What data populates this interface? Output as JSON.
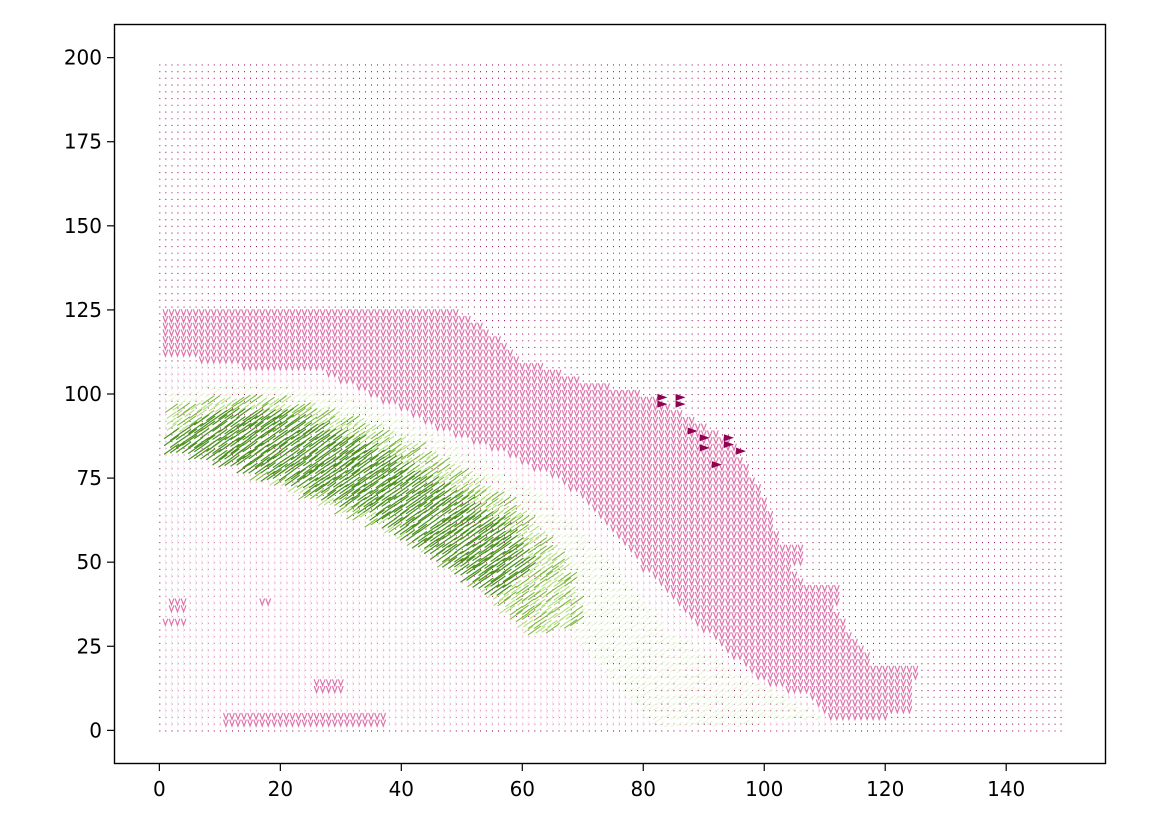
{
  "chart_data": {
    "type": "quiver",
    "title": "",
    "xlabel": "",
    "ylabel": "",
    "xlim": [
      -7.5,
      156.5
    ],
    "ylim": [
      -10,
      210
    ],
    "xticks": [
      0,
      20,
      40,
      60,
      80,
      100,
      120,
      140
    ],
    "yticks": [
      0,
      25,
      50,
      75,
      100,
      125,
      150,
      175,
      200
    ],
    "xtick_labels": [
      "0",
      "20",
      "40",
      "60",
      "80",
      "100",
      "120",
      "140"
    ],
    "ytick_labels": [
      "0",
      "25",
      "50",
      "75",
      "100",
      "125",
      "150",
      "175",
      "200"
    ],
    "grid": false,
    "colormap": "PiYG",
    "grid_extent": {
      "x": [
        0,
        149
      ],
      "y": [
        0,
        199
      ],
      "step": 1
    },
    "colors": {
      "dark_magenta": "#8e0152",
      "pink": "#de77ae",
      "light_pink": "#fde0ef",
      "pale_green": "#e6f5d0",
      "light_green": "#b8e186",
      "green": "#7fbc41",
      "dark_green": "#4d9221"
    },
    "regions": [
      {
        "name": "zero-field",
        "note": "tiny dark magenta dots across the whole grid"
      },
      {
        "name": "pink-arrows",
        "polygon": [
          [
            1,
            126
          ],
          [
            48,
            126
          ],
          [
            55,
            118
          ],
          [
            60,
            110
          ],
          [
            70,
            104
          ],
          [
            80,
            100
          ],
          [
            86,
            95
          ],
          [
            95,
            85
          ],
          [
            100,
            70
          ],
          [
            104,
            50
          ],
          [
            108,
            42
          ],
          [
            112,
            35
          ],
          [
            118,
            20
          ],
          [
            125,
            18
          ],
          [
            125,
            5
          ],
          [
            112,
            2
          ],
          [
            108,
            10
          ],
          [
            100,
            14
          ],
          [
            90,
            30
          ],
          [
            80,
            48
          ],
          [
            74,
            62
          ],
          [
            66,
            75
          ],
          [
            56,
            82
          ],
          [
            46,
            88
          ],
          [
            36,
            96
          ],
          [
            26,
            108
          ],
          [
            12,
            108
          ],
          [
            1,
            112
          ]
        ]
      },
      {
        "name": "light-pink-fill",
        "polygon": [
          [
            1,
            110
          ],
          [
            14,
            108
          ],
          [
            30,
            104
          ],
          [
            46,
            90
          ],
          [
            58,
            82
          ],
          [
            66,
            74
          ],
          [
            76,
            56
          ],
          [
            86,
            36
          ],
          [
            96,
            18
          ],
          [
            108,
            8
          ],
          [
            112,
            2
          ],
          [
            1,
            2
          ]
        ]
      },
      {
        "name": "pale-green-band",
        "polygon": [
          [
            1,
            100
          ],
          [
            14,
            104
          ],
          [
            30,
            100
          ],
          [
            48,
            86
          ],
          [
            62,
            72
          ],
          [
            72,
            56
          ],
          [
            84,
            30
          ],
          [
            100,
            14
          ],
          [
            110,
            4
          ],
          [
            100,
            2
          ],
          [
            82,
            2
          ],
          [
            76,
            14
          ],
          [
            66,
            32
          ],
          [
            56,
            50
          ],
          [
            40,
            62
          ],
          [
            20,
            76
          ],
          [
            4,
            86
          ]
        ]
      },
      {
        "name": "green-band",
        "polygon": [
          [
            2,
            97
          ],
          [
            18,
            100
          ],
          [
            34,
            92
          ],
          [
            48,
            80
          ],
          [
            60,
            66
          ],
          [
            68,
            48
          ],
          [
            70,
            32
          ],
          [
            62,
            28
          ],
          [
            52,
            44
          ],
          [
            40,
            58
          ],
          [
            24,
            70
          ],
          [
            8,
            82
          ],
          [
            2,
            86
          ]
        ]
      },
      {
        "name": "dark-green-core",
        "polygon": [
          [
            2,
            88
          ],
          [
            10,
            95
          ],
          [
            20,
            95
          ],
          [
            34,
            86
          ],
          [
            46,
            74
          ],
          [
            58,
            60
          ],
          [
            62,
            48
          ],
          [
            56,
            40
          ],
          [
            46,
            52
          ],
          [
            34,
            66
          ],
          [
            22,
            74
          ],
          [
            10,
            80
          ],
          [
            2,
            84
          ]
        ]
      },
      {
        "name": "bottom-pink-arrows",
        "rows": [
          [
            11,
            37,
            3
          ],
          [
            26,
            30,
            13
          ],
          [
            1,
            4,
            32
          ],
          [
            2,
            4,
            37
          ],
          [
            17,
            18,
            38
          ]
        ]
      }
    ],
    "annotations": {
      "large_arrows": [
        [
          83,
          99
        ],
        [
          86,
          99
        ],
        [
          83,
          97
        ],
        [
          86,
          97
        ],
        [
          88,
          89
        ],
        [
          90,
          87
        ],
        [
          90,
          84
        ],
        [
          94,
          87
        ],
        [
          94,
          85
        ],
        [
          96,
          83
        ],
        [
          92,
          79
        ]
      ],
      "pink_islands": [
        [
          104,
          52
        ],
        [
          100,
          46
        ],
        [
          106,
          40
        ],
        [
          110,
          40
        ],
        [
          100,
          30
        ],
        [
          96,
          28
        ],
        [
          114,
          14
        ],
        [
          119,
          16
        ],
        [
          123,
          17
        ],
        [
          116,
          6
        ],
        [
          121,
          10
        ],
        [
          98,
          60
        ],
        [
          94,
          64
        ]
      ]
    }
  }
}
